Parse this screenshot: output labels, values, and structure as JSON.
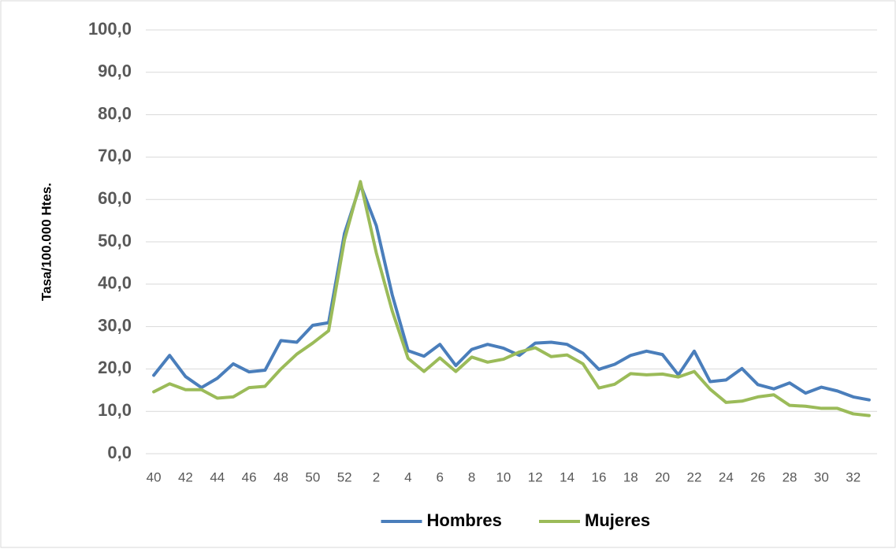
{
  "chart_data": {
    "type": "line",
    "y_label": "Tasa/100.000 Htes.",
    "categories": [
      "40",
      null,
      "42",
      null,
      "44",
      null,
      "46",
      null,
      "48",
      null,
      "50",
      null,
      "52",
      null,
      "2",
      null,
      "4",
      null,
      "6",
      null,
      "8",
      null,
      "10",
      null,
      "12",
      null,
      "14",
      null,
      "16",
      null,
      "18",
      null,
      "20",
      null,
      "22",
      null,
      "24",
      null,
      "26",
      null,
      "28",
      null,
      "30",
      null,
      "32",
      null
    ],
    "series": [
      {
        "name": "Hombres",
        "color": "#4a7ebb",
        "values": [
          18.5,
          23.2,
          18.2,
          15.6,
          17.8,
          21.2,
          19.3,
          19.7,
          26.7,
          26.3,
          30.3,
          30.9,
          52.0,
          63.5,
          53.8,
          37.5,
          24.3,
          23.0,
          25.8,
          20.8,
          24.6,
          25.8,
          24.9,
          23.2,
          26.1,
          26.3,
          25.8,
          23.7,
          19.9,
          21.1,
          23.2,
          24.2,
          23.4,
          18.6,
          24.2,
          17.0,
          17.4,
          20.1,
          16.3,
          15.3,
          16.7,
          14.3,
          15.7,
          14.8,
          13.4,
          12.7
        ]
      },
      {
        "name": "Mujeres",
        "color": "#9bbb59",
        "values": [
          14.6,
          16.5,
          15.1,
          15.1,
          13.1,
          13.4,
          15.6,
          15.9,
          20.0,
          23.5,
          26.1,
          29.0,
          50.5,
          64.2,
          47.4,
          33.7,
          22.5,
          19.4,
          22.6,
          19.4,
          22.8,
          21.6,
          22.3,
          24.0,
          25.0,
          22.9,
          23.3,
          21.2,
          15.5,
          16.4,
          18.9,
          18.6,
          18.8,
          18.1,
          19.4,
          15.2,
          12.1,
          12.4,
          13.4,
          13.9,
          11.4,
          11.2,
          10.7,
          10.7,
          9.4,
          9.0
        ]
      }
    ],
    "ylim": [
      0,
      100
    ],
    "yticks": [
      {
        "value": 0,
        "label": "0,0"
      },
      {
        "value": 10,
        "label": "10,0"
      },
      {
        "value": 20,
        "label": "20,0"
      },
      {
        "value": 30,
        "label": "30,0"
      },
      {
        "value": 40,
        "label": "40,0"
      },
      {
        "value": 50,
        "label": "50,0"
      },
      {
        "value": 60,
        "label": "60,0"
      },
      {
        "value": 70,
        "label": "70,0"
      },
      {
        "value": 80,
        "label": "80,0"
      },
      {
        "value": 90,
        "label": "90,0"
      },
      {
        "value": 100,
        "label": "100,0"
      }
    ],
    "grid": true,
    "legend": "bottom"
  }
}
